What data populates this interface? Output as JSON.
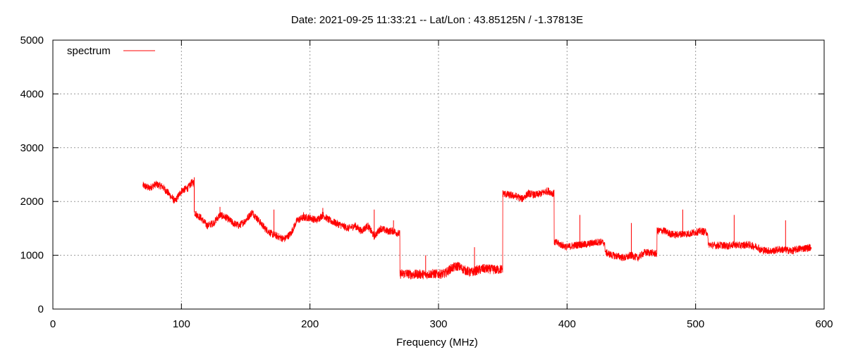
{
  "chart_data": {
    "type": "line",
    "title": "Date: 2021-09-25 11:33:21  --  Lat/Lon : 43.85125N / -1.37813E",
    "xlabel": "Frequency (MHz)",
    "ylabel": "",
    "xlim": [
      0,
      600
    ],
    "ylim": [
      0,
      5000
    ],
    "x_ticks": [
      0,
      100,
      200,
      300,
      400,
      500,
      600
    ],
    "y_ticks": [
      0,
      1000,
      2000,
      3000,
      4000,
      5000
    ],
    "grid": true,
    "legend_position": "top-left",
    "series": [
      {
        "name": "spectrum",
        "color": "#ff0000",
        "x": [
          70,
          75,
          80,
          85,
          90,
          95,
          100,
          105,
          108,
          110,
          112,
          115,
          120,
          125,
          130,
          135,
          140,
          145,
          150,
          155,
          160,
          165,
          170,
          175,
          180,
          185,
          190,
          195,
          200,
          205,
          210,
          215,
          220,
          225,
          230,
          235,
          240,
          245,
          250,
          255,
          260,
          265,
          269,
          270,
          275,
          280,
          285,
          290,
          295,
          300,
          305,
          310,
          315,
          320,
          325,
          330,
          335,
          340,
          345,
          349,
          350,
          355,
          360,
          365,
          370,
          375,
          380,
          385,
          389,
          390,
          395,
          400,
          405,
          410,
          415,
          420,
          425,
          429,
          430,
          435,
          440,
          445,
          450,
          455,
          460,
          465,
          469,
          470,
          475,
          480,
          485,
          490,
          495,
          500,
          505,
          509,
          510,
          515,
          520,
          525,
          530,
          535,
          540,
          545,
          549,
          550,
          555,
          560,
          565,
          570,
          575,
          580,
          585,
          590
        ],
        "values": [
          2300,
          2250,
          2320,
          2280,
          2150,
          2000,
          2200,
          2250,
          2350,
          1800,
          1750,
          1700,
          1550,
          1600,
          1750,
          1700,
          1600,
          1550,
          1650,
          1800,
          1650,
          1500,
          1400,
          1350,
          1300,
          1400,
          1650,
          1700,
          1700,
          1650,
          1750,
          1650,
          1600,
          1550,
          1500,
          1550,
          1450,
          1550,
          1350,
          1500,
          1450,
          1450,
          1400,
          650,
          660,
          640,
          650,
          640,
          660,
          650,
          660,
          760,
          800,
          730,
          680,
          720,
          750,
          740,
          730,
          740,
          2150,
          2120,
          2100,
          2050,
          2150,
          2120,
          2150,
          2200,
          2150,
          1250,
          1200,
          1150,
          1180,
          1200,
          1200,
          1230,
          1250,
          1230,
          1050,
          1000,
          980,
          950,
          1000,
          950,
          1050,
          1050,
          1030,
          1450,
          1460,
          1400,
          1380,
          1400,
          1400,
          1430,
          1450,
          1420,
          1200,
          1180,
          1190,
          1170,
          1200,
          1180,
          1200,
          1170,
          1150,
          1100,
          1090,
          1080,
          1110,
          1100,
          1080,
          1120,
          1130,
          1150
        ],
        "spikes": [
          {
            "x": 110,
            "y": 2450
          },
          {
            "x": 130,
            "y": 1900
          },
          {
            "x": 172,
            "y": 1850
          },
          {
            "x": 195,
            "y": 1800
          },
          {
            "x": 210,
            "y": 1880
          },
          {
            "x": 250,
            "y": 1850
          },
          {
            "x": 265,
            "y": 1650
          },
          {
            "x": 290,
            "y": 1000
          },
          {
            "x": 328,
            "y": 1150
          },
          {
            "x": 410,
            "y": 1750
          },
          {
            "x": 450,
            "y": 1600
          },
          {
            "x": 490,
            "y": 1850
          },
          {
            "x": 530,
            "y": 1750
          },
          {
            "x": 570,
            "y": 1650
          }
        ]
      }
    ]
  }
}
